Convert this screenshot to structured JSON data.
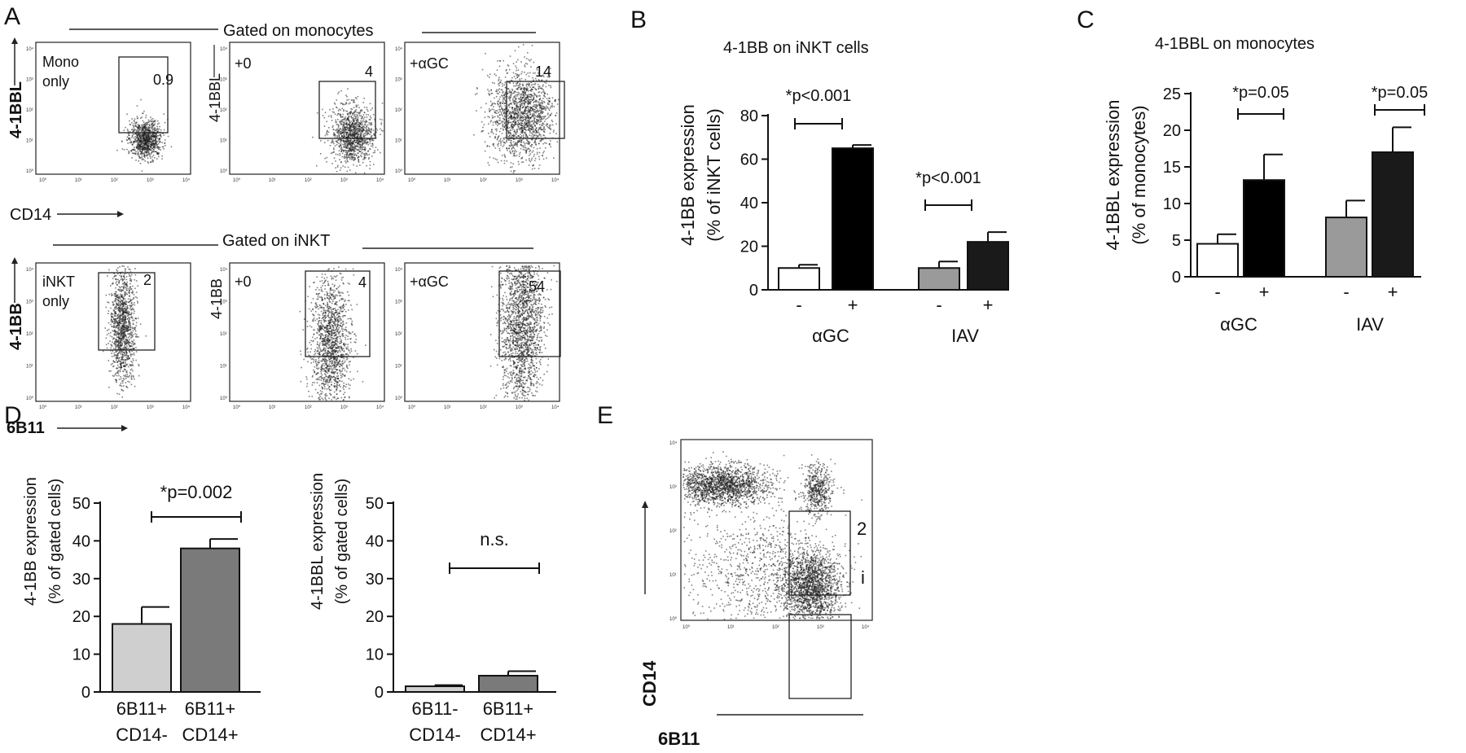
{
  "panel_labels": {
    "A": "A",
    "B": "B",
    "C": "C",
    "D": "D",
    "E": "E"
  },
  "panel_a": {
    "top_header": "Gated on monocytes",
    "bottom_header": "Gated on iNKT",
    "top_x_label": "CD14",
    "top_y_label": "4-1BBL",
    "bottom_x_label": "6B11",
    "bottom_y_label": "4-1BB",
    "fc_tick_labels": [
      "10⁰",
      "10¹",
      "10²",
      "10³",
      "10⁴"
    ],
    "plots": [
      {
        "corner_text": "Mono\nonly",
        "gate_value": "0.9"
      },
      {
        "corner_text": "+0",
        "gate_value": "4"
      },
      {
        "corner_text": "+αGC",
        "gate_value": "14"
      },
      {
        "corner_text": "iNKT\nonly",
        "gate_value": "2"
      },
      {
        "corner_text": "+0",
        "gate_value": "4"
      },
      {
        "corner_text": "+αGC",
        "gate_value": "54"
      }
    ]
  },
  "panel_e": {
    "x_label": "6B11",
    "y_label": "CD14",
    "tick_labels": [
      "10⁰",
      "10¹",
      "10²",
      "10³",
      "10⁴"
    ],
    "gate_upper_label": "2",
    "gate_lower_label": "i"
  },
  "chart_data": [
    {
      "panel": "B",
      "type": "bar",
      "title": "4-1BB on iNKT cells",
      "ylabel": "4-1BB expression\n(% of iNKT cells)",
      "ylim": [
        0,
        80
      ],
      "yticks": [
        0,
        20,
        40,
        60,
        80
      ],
      "groups": [
        "αGC",
        "IAV"
      ],
      "sign_labels": [
        "-",
        "+",
        "-",
        "+"
      ],
      "values": [
        10,
        65,
        10,
        22
      ],
      "errors": [
        1.5,
        1.5,
        3,
        4.5
      ],
      "bar_colors": [
        "#ffffff",
        "#000000",
        "#9a9a9a",
        "#1a1a1a"
      ],
      "annotations": [
        "*p<0.001",
        "*p<0.001"
      ]
    },
    {
      "panel": "C",
      "type": "bar",
      "title": "4-1BBL on monocytes",
      "ylabel": "4-1BBL expression\n(% of monocytes)",
      "ylim": [
        0,
        25
      ],
      "yticks": [
        0,
        5,
        10,
        15,
        20,
        25
      ],
      "groups": [
        "αGC",
        "IAV"
      ],
      "sign_labels": [
        "-",
        "+",
        "-",
        "+"
      ],
      "values": [
        4.5,
        13.2,
        8.1,
        17.0
      ],
      "errors": [
        1.3,
        3.5,
        2.3,
        3.4
      ],
      "bar_colors": [
        "#ffffff",
        "#000000",
        "#9a9a9a",
        "#1a1a1a"
      ],
      "annotations": [
        "*p=0.05",
        "*p=0.05"
      ]
    },
    {
      "panel": "D-left",
      "type": "bar",
      "ylabel": "4-1BB expression\n(% of gated cells)",
      "ylim": [
        0,
        50
      ],
      "yticks": [
        0,
        10,
        20,
        30,
        40,
        50
      ],
      "categories": [
        "6B11+\nCD14-",
        "6B11+\nCD14+"
      ],
      "values": [
        18,
        38
      ],
      "errors": [
        4.5,
        2.5
      ],
      "bar_colors": [
        "#cfcfcf",
        "#7a7a7a"
      ],
      "annotation": "*p=0.002"
    },
    {
      "panel": "D-right",
      "type": "bar",
      "ylabel": "4-1BBL expression\n(% of gated cells)",
      "ylim": [
        0,
        50
      ],
      "yticks": [
        0,
        10,
        20,
        30,
        40,
        50
      ],
      "categories": [
        "6B11-\nCD14-",
        "6B11+\nCD14+"
      ],
      "values": [
        1.5,
        4.3
      ],
      "errors": [
        0.3,
        1.2
      ],
      "bar_colors": [
        "#cfcfcf",
        "#7a7a7a"
      ],
      "annotation": "n.s."
    }
  ]
}
